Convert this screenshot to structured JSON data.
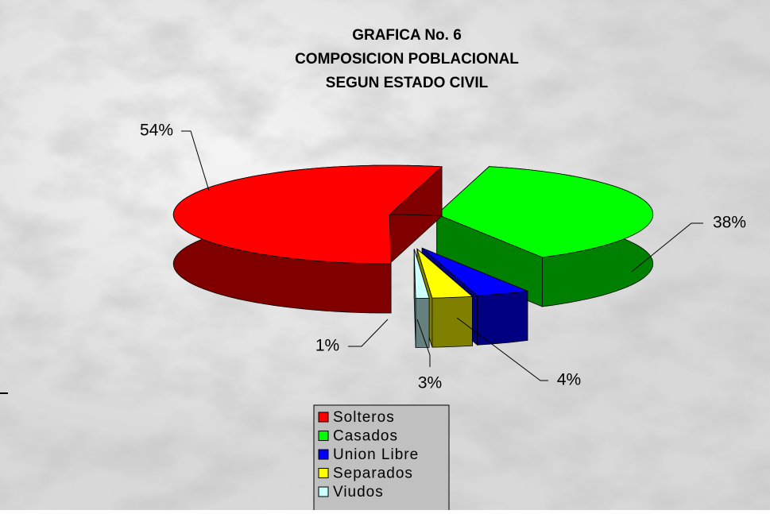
{
  "chart_data": {
    "type": "pie",
    "title": [
      "GRAFICA No. 6",
      "COMPOSICION POBLACIONAL",
      "SEGUN ESTADO CIVIL"
    ],
    "categories": [
      "Solteros",
      "Casados",
      "Union Libre",
      "Separados",
      "Viudos"
    ],
    "values": [
      54,
      38,
      4,
      3,
      1
    ],
    "value_labels": [
      "54%",
      "38%",
      "4%",
      "3%",
      "1%"
    ],
    "colors": [
      "#ff0000",
      "#00ff00",
      "#0000ff",
      "#ffff00",
      "#ccffff"
    ],
    "legend": "bottom"
  }
}
